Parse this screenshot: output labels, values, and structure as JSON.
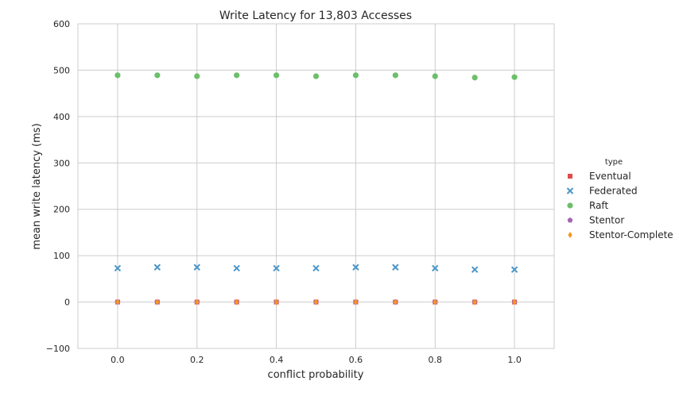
{
  "chart_data": {
    "type": "scatter",
    "title": "Write Latency for 13,803 Accesses",
    "xlabel": "conflict probability",
    "ylabel": "mean write latency (ms)",
    "xlim": [
      -0.1,
      1.1
    ],
    "ylim": [
      -100,
      600
    ],
    "xticks": [
      0.0,
      0.2,
      0.4,
      0.6,
      0.8,
      1.0
    ],
    "xtick_labels": [
      "0.0",
      "0.2",
      "0.4",
      "0.6",
      "0.8",
      "1.0"
    ],
    "yticks": [
      -100,
      0,
      100,
      200,
      300,
      400,
      500,
      600
    ],
    "ytick_labels": [
      "−100",
      "0",
      "100",
      "200",
      "300",
      "400",
      "500",
      "600"
    ],
    "grid": true,
    "legend": {
      "title": "type",
      "placement": "right-outside"
    },
    "x": [
      0.0,
      0.1,
      0.2,
      0.3,
      0.4,
      0.5,
      0.6,
      0.7,
      0.8,
      0.9,
      1.0
    ],
    "series": [
      {
        "name": "Eventual",
        "marker": "square",
        "color": "#e24a4a",
        "values": [
          0,
          0,
          0,
          0,
          0,
          0,
          0,
          0,
          0,
          0,
          0
        ]
      },
      {
        "name": "Federated",
        "marker": "x",
        "color": "#4c96c8",
        "values": [
          73,
          75,
          75,
          73,
          73,
          73,
          75,
          75,
          73,
          70,
          70
        ]
      },
      {
        "name": "Raft",
        "marker": "circle",
        "color": "#6cbf6a",
        "values": [
          489,
          489,
          487,
          489,
          489,
          487,
          489,
          489,
          487,
          484,
          485
        ]
      },
      {
        "name": "Stentor",
        "marker": "pentagon",
        "color": "#a565b0",
        "values": [
          0,
          0,
          0,
          0,
          0,
          0,
          0,
          0,
          0,
          0,
          0
        ]
      },
      {
        "name": "Stentor-Complete",
        "marker": "diamond",
        "color": "#f7941d",
        "values": [
          0,
          0,
          0,
          0,
          0,
          0,
          0,
          0,
          0,
          0,
          0
        ]
      }
    ]
  }
}
